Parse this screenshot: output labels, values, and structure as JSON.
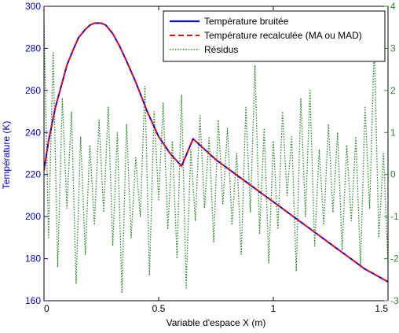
{
  "chart_data": {
    "type": "line",
    "xlabel": "Variable d'espace X (m)",
    "ylabel": "Température (K)",
    "xlim": [
      0,
      1.5
    ],
    "ylim_left": [
      160,
      300
    ],
    "ylim_right": [
      -3,
      4
    ],
    "xticks": [
      0,
      0.5,
      1,
      1.5
    ],
    "xtick_labels": [
      "0",
      "0.5",
      "1",
      "1.5"
    ],
    "yticks_left": [
      160,
      180,
      200,
      220,
      240,
      260,
      280,
      300
    ],
    "ytick_labels_left": [
      "160",
      "180",
      "200",
      "220",
      "240",
      "260",
      "280",
      "300"
    ],
    "yticks_right": [
      -3,
      -2,
      -1,
      0,
      1,
      2,
      3,
      4
    ],
    "ytick_labels_right": [
      "-3",
      "-2",
      "-1",
      "0",
      "1",
      "2",
      "3",
      "4"
    ],
    "grid": false,
    "legend_position": "top-right",
    "colors": {
      "left_axis": "#0000cc",
      "right_axis": "#2e8b2e"
    },
    "series": [
      {
        "name": "Température bruitée",
        "axis": "left",
        "color": "#0000ff",
        "style": "solid",
        "x": [
          0,
          0.02,
          0.05,
          0.08,
          0.1,
          0.13,
          0.15,
          0.18,
          0.2,
          0.22,
          0.25,
          0.27,
          0.3,
          0.33,
          0.36,
          0.4,
          0.45,
          0.5,
          0.55,
          0.6,
          0.65,
          0.7,
          0.75,
          0.8,
          0.85,
          0.9,
          0.95,
          1.0,
          1.05,
          1.1,
          1.15,
          1.2,
          1.25,
          1.3,
          1.35,
          1.4,
          1.45,
          1.5
        ],
        "y": [
          222,
          236,
          252,
          264,
          272,
          280,
          285,
          289,
          291,
          292,
          292,
          291,
          287,
          281,
          274,
          264,
          250,
          238,
          230,
          224,
          237,
          232,
          227,
          223,
          219,
          215,
          211,
          207,
          203,
          199,
          195,
          191,
          187,
          183,
          179,
          175,
          172,
          169
        ]
      },
      {
        "name": "Température recalculée (MA ou MAD)",
        "axis": "left",
        "color": "#ff0000",
        "style": "dashed",
        "x": [
          0,
          0.02,
          0.05,
          0.08,
          0.1,
          0.13,
          0.15,
          0.18,
          0.2,
          0.22,
          0.25,
          0.27,
          0.3,
          0.33,
          0.36,
          0.4,
          0.45,
          0.5,
          0.55,
          0.6,
          0.65,
          0.7,
          0.75,
          0.8,
          0.85,
          0.9,
          0.95,
          1.0,
          1.05,
          1.1,
          1.15,
          1.2,
          1.25,
          1.3,
          1.35,
          1.4,
          1.45,
          1.5
        ],
        "y": [
          222,
          236,
          252,
          264,
          272,
          280,
          285,
          289,
          291,
          292,
          292,
          291,
          287,
          281,
          274,
          264,
          250,
          238,
          230,
          224,
          237,
          232,
          227,
          223,
          219,
          215,
          211,
          207,
          203,
          199,
          195,
          191,
          187,
          183,
          179,
          175,
          172,
          169
        ]
      },
      {
        "name": "Résidus",
        "axis": "right",
        "color": "#2e8b2e",
        "style": "dotted",
        "x": [
          0.0,
          0.02,
          0.04,
          0.06,
          0.08,
          0.1,
          0.12,
          0.14,
          0.16,
          0.18,
          0.2,
          0.22,
          0.24,
          0.26,
          0.28,
          0.3,
          0.32,
          0.34,
          0.36,
          0.38,
          0.4,
          0.42,
          0.44,
          0.46,
          0.48,
          0.5,
          0.52,
          0.54,
          0.56,
          0.58,
          0.6,
          0.62,
          0.64,
          0.66,
          0.68,
          0.7,
          0.72,
          0.74,
          0.76,
          0.78,
          0.8,
          0.82,
          0.84,
          0.86,
          0.88,
          0.9,
          0.92,
          0.94,
          0.96,
          0.98,
          1.0,
          1.02,
          1.04,
          1.06,
          1.08,
          1.1,
          1.12,
          1.14,
          1.16,
          1.18,
          1.2,
          1.22,
          1.24,
          1.26,
          1.28,
          1.3,
          1.32,
          1.34,
          1.36,
          1.38,
          1.4,
          1.42,
          1.44,
          1.46,
          1.48,
          1.5
        ],
        "y": [
          3.6,
          -1.5,
          2.9,
          -2.2,
          1.8,
          -0.8,
          1.5,
          -2.6,
          0.9,
          -1.9,
          0.7,
          -1.2,
          1.3,
          -0.9,
          1.6,
          -1.7,
          1.0,
          -2.8,
          1.2,
          -1.5,
          0.4,
          -1.0,
          2.1,
          -2.4,
          1.5,
          -0.6,
          1.7,
          -1.3,
          0.8,
          -2.0,
          1.9,
          -2.7,
          0.6,
          -1.1,
          1.4,
          -0.8,
          0.9,
          -1.6,
          1.3,
          -0.7,
          1.1,
          -1.2,
          0.5,
          -1.9,
          1.6,
          -0.9,
          2.6,
          -1.4,
          1.1,
          -2.1,
          0.8,
          -1.3,
          1.5,
          -0.5,
          0.9,
          -2.3,
          1.8,
          -1.0,
          2.0,
          -1.7,
          0.6,
          -1.2,
          1.2,
          -0.9,
          1.0,
          -1.8,
          0.7,
          -1.1,
          0.9,
          -2.2,
          1.6,
          -0.8,
          3.1,
          -1.5,
          0.5,
          -2.1
        ]
      }
    ]
  }
}
